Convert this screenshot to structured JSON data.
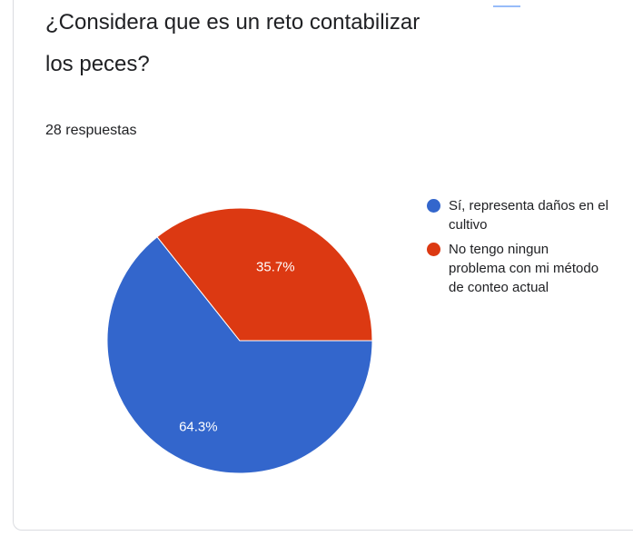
{
  "question": {
    "title": "¿Considera que es un reto contabilizar los peces?",
    "responses": "28 respuestas"
  },
  "colors": {
    "series1": "#3366cc",
    "series2": "#dc3912",
    "tab_accent": "#4285f4"
  },
  "chart_data": {
    "type": "pie",
    "title": "¿Considera que es un reto contabilizar los peces?",
    "categories": [
      "Sí, representa daños en el cultivo",
      "No tengo ningun problema con mi método de conteo actual"
    ],
    "values": [
      64.3,
      35.7
    ],
    "value_labels": [
      "64.3%",
      "35.7%"
    ],
    "colors": [
      "#3366cc",
      "#dc3912"
    ],
    "legend_position": "right"
  }
}
